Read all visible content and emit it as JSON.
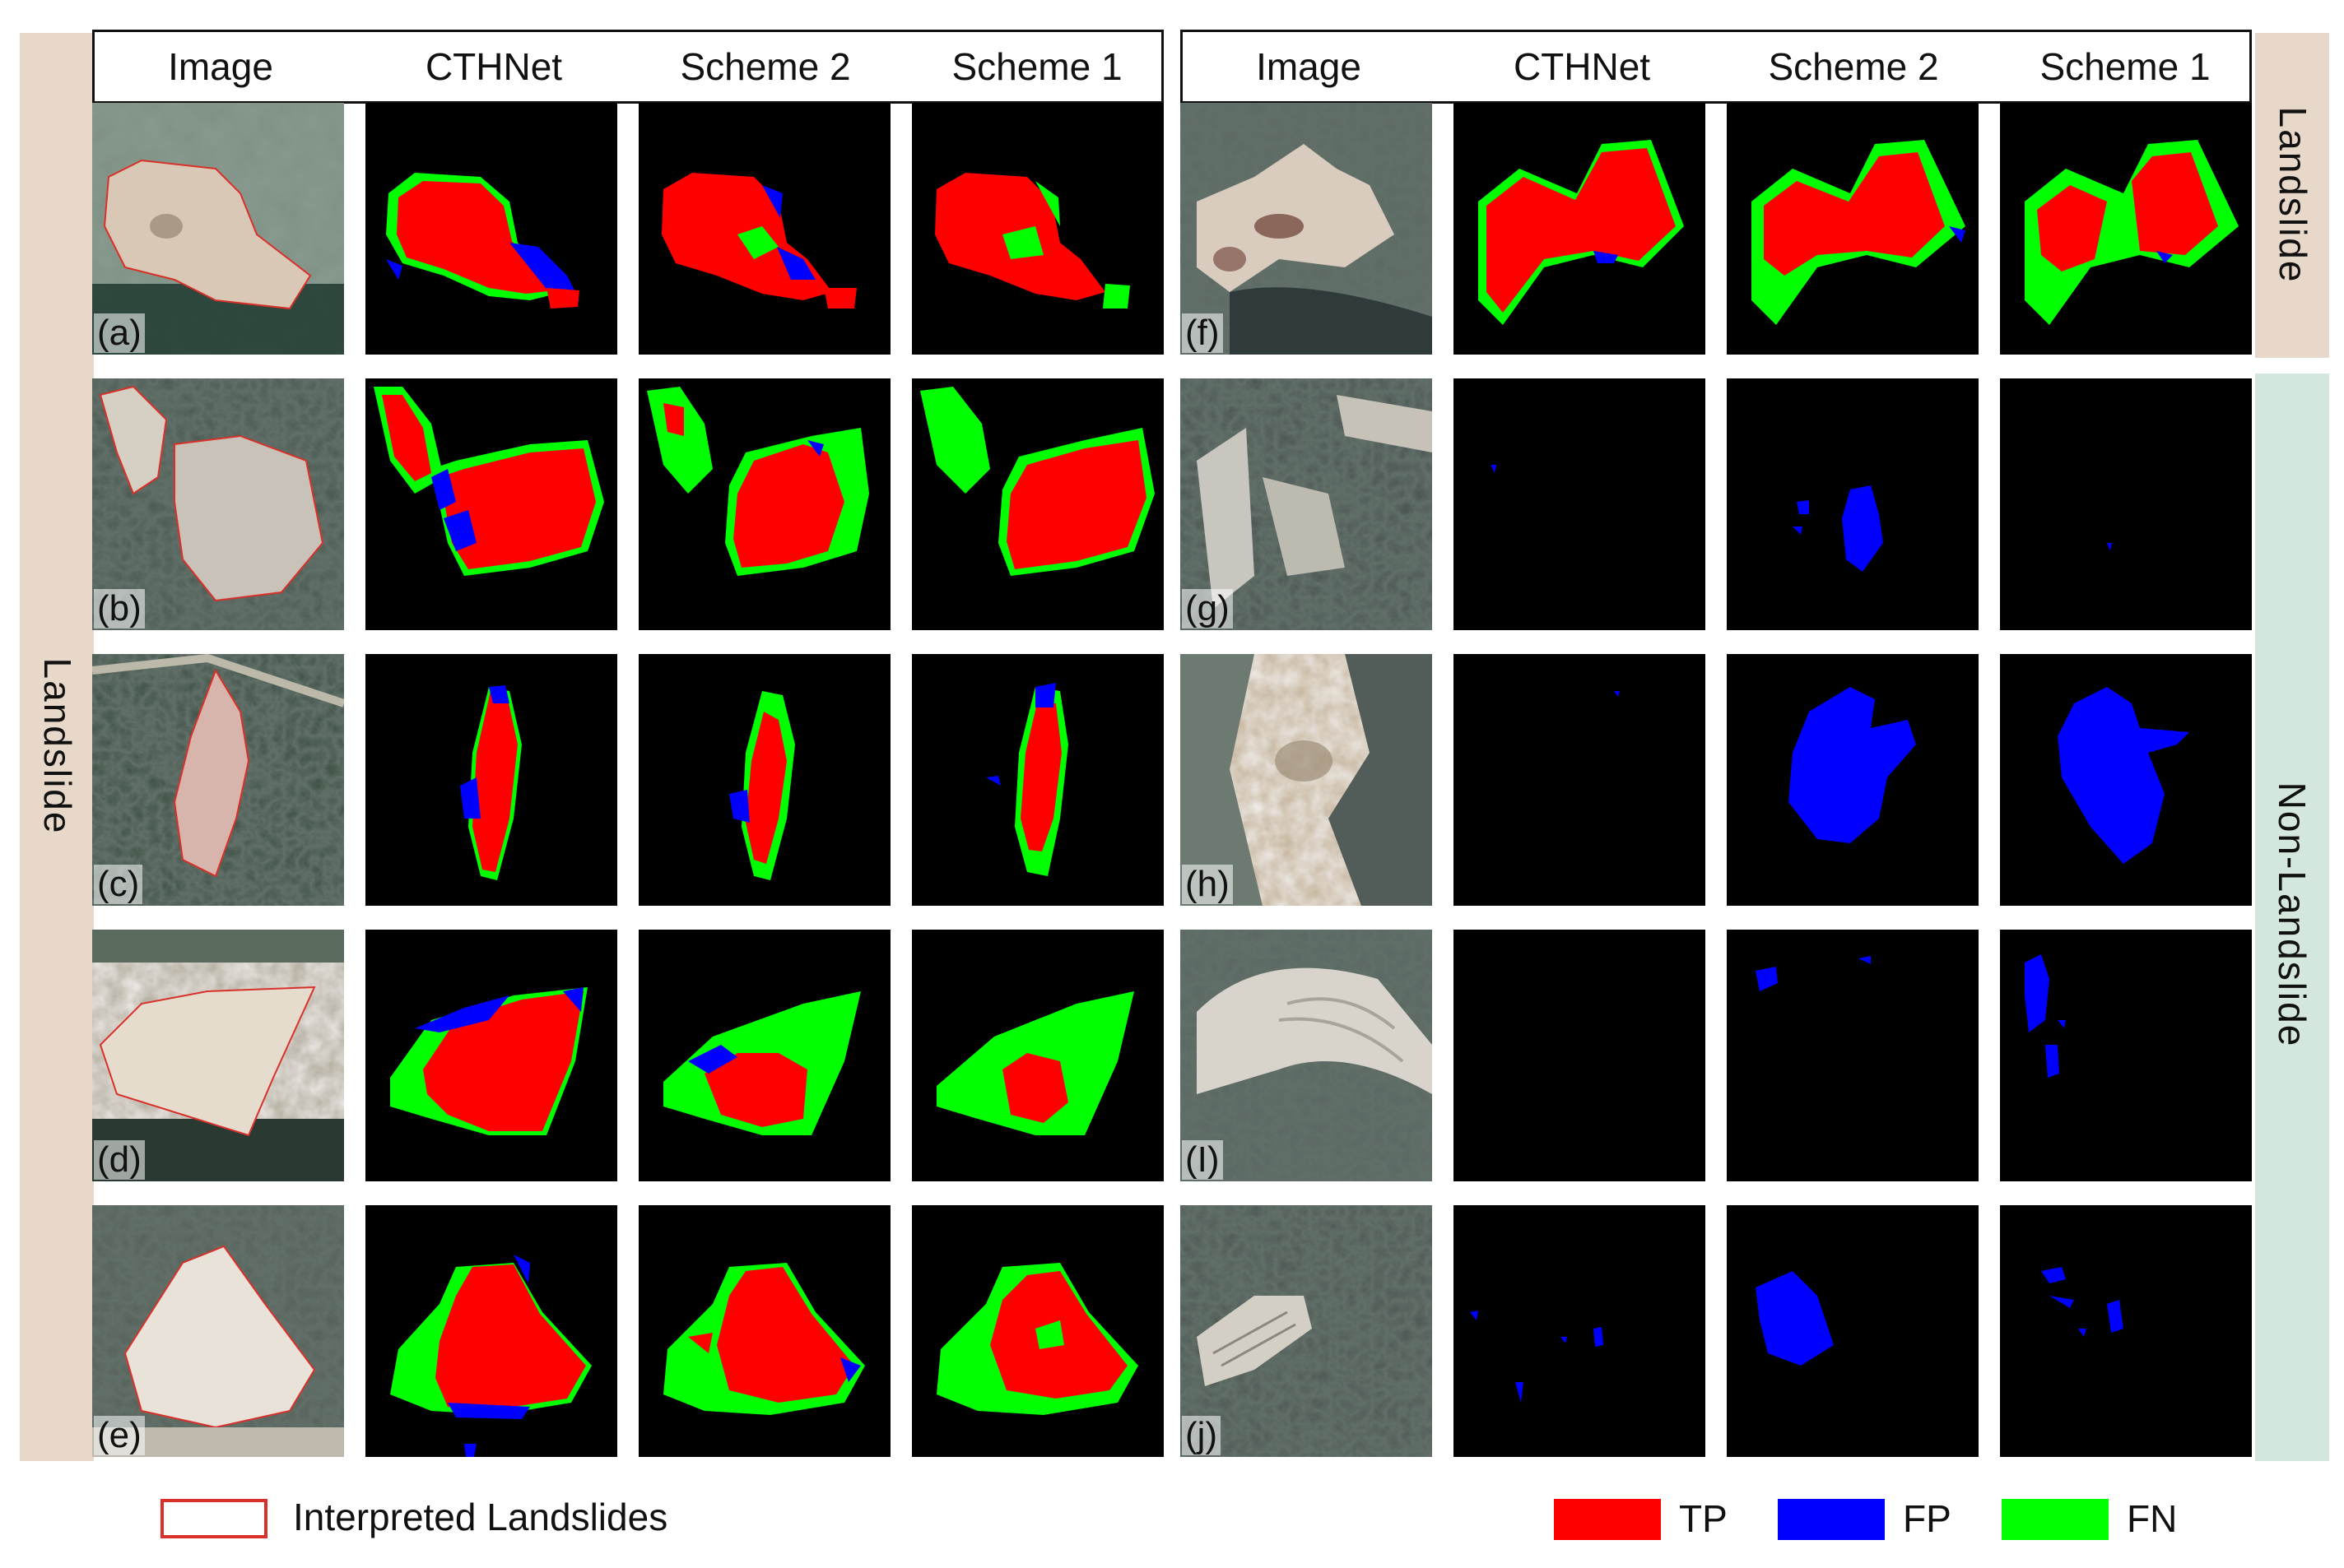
{
  "left_group": {
    "band_label": "Landslide",
    "headers": [
      "Image",
      "CTHNet",
      "Scheme 2",
      "Scheme 1"
    ],
    "rows": [
      "(a)",
      "(b)",
      "(c)",
      "(d)",
      "(e)"
    ]
  },
  "right_group": {
    "band_label_top": "Landslide",
    "band_label_bottom": "Non-Landslide",
    "headers": [
      "Image",
      "CTHNet",
      "Scheme 2",
      "Scheme 1"
    ],
    "rows": [
      "(f)",
      "(g)",
      "(h)",
      "(I)",
      "(j)"
    ]
  },
  "legend": {
    "outline_label": "Interpreted Landslides",
    "outline_color": "#d9302a",
    "items": [
      {
        "label": "TP",
        "color": "#ff0000"
      },
      {
        "label": "FP",
        "color": "#0000ff"
      },
      {
        "label": "FN",
        "color": "#00ff00"
      }
    ]
  }
}
